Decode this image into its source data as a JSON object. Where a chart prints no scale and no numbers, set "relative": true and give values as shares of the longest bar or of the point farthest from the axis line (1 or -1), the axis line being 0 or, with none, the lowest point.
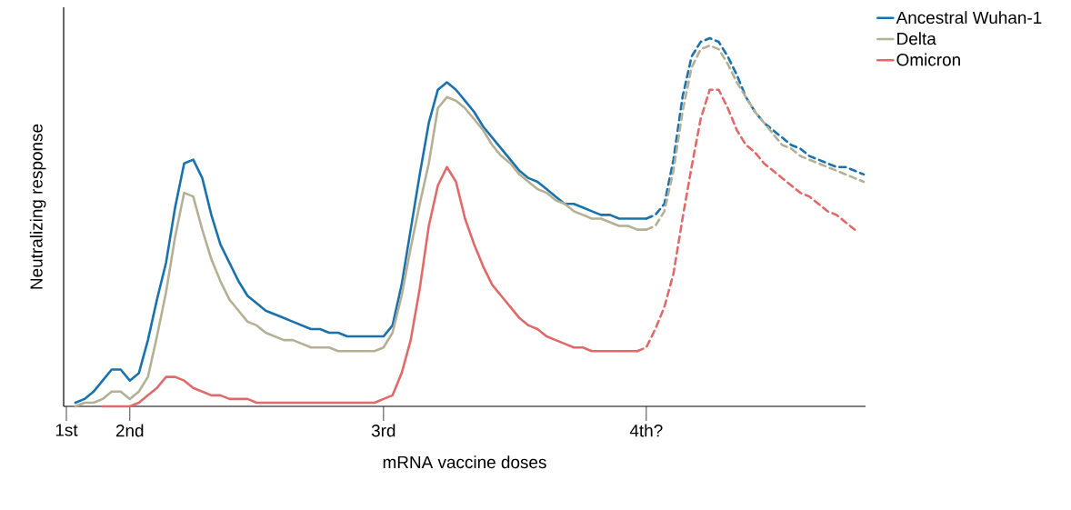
{
  "chart_data": {
    "type": "line",
    "relative": true,
    "xlabel": "mRNA vaccine doses",
    "ylabel": "Neutralizing response",
    "legend": "top right",
    "categories": [
      "1st",
      null,
      null,
      null,
      null,
      null,
      null,
      "2nd",
      null,
      null,
      null,
      null,
      null,
      null,
      null,
      null,
      null,
      null,
      null,
      null,
      null,
      null,
      null,
      null,
      null,
      null,
      null,
      null,
      null,
      null,
      null,
      null,
      null,
      null,
      null,
      "3rd",
      null,
      null,
      null,
      null,
      null,
      null,
      null,
      null,
      null,
      null,
      null,
      null,
      null,
      null,
      null,
      null,
      null,
      null,
      null,
      null,
      null,
      null,
      null,
      null,
      null,
      null,
      null,
      null,
      "4th?",
      null,
      null,
      null,
      null,
      null,
      null,
      null,
      null,
      null,
      null,
      null,
      null,
      null,
      null,
      null,
      null,
      null,
      null,
      null,
      null,
      null,
      null,
      null,
      null
    ],
    "series": [
      {
        "name": "Ancestral Wuhan-1",
        "color": "#1a72ad",
        "line_style": "solid",
        "values": [
          null,
          0.01,
          0.02,
          0.04,
          0.07,
          0.1,
          0.1,
          0.07,
          0.09,
          0.18,
          0.29,
          0.39,
          0.54,
          0.66,
          0.67,
          0.62,
          0.52,
          0.44,
          0.39,
          0.34,
          0.3,
          0.28,
          0.26,
          0.25,
          0.24,
          0.23,
          0.22,
          0.21,
          0.21,
          0.2,
          0.2,
          0.19,
          0.19,
          0.19,
          0.19,
          0.19,
          0.22,
          0.33,
          0.48,
          0.63,
          0.77,
          0.86,
          0.88,
          0.86,
          0.83,
          0.8,
          0.76,
          0.73,
          0.7,
          0.67,
          0.64,
          0.62,
          0.61,
          0.59,
          0.57,
          0.55,
          0.55,
          0.54,
          0.53,
          0.52,
          0.52,
          0.51,
          0.51,
          0.51,
          0.51,
          null,
          null,
          null,
          null,
          null,
          null,
          null,
          null,
          null,
          null,
          null,
          null,
          null,
          null,
          null,
          null,
          null,
          null,
          null,
          null,
          null,
          null,
          null,
          null
        ]
      },
      {
        "name": "Delta",
        "color": "#b5b095",
        "line_style": "solid",
        "values": [
          null,
          0,
          0.01,
          0.01,
          0.02,
          0.04,
          0.04,
          0.02,
          0.04,
          0.08,
          0.19,
          0.31,
          0.46,
          0.58,
          0.57,
          0.48,
          0.4,
          0.34,
          0.29,
          0.26,
          0.23,
          0.22,
          0.2,
          0.19,
          0.18,
          0.18,
          0.17,
          0.16,
          0.16,
          0.16,
          0.15,
          0.15,
          0.15,
          0.15,
          0.15,
          0.16,
          0.2,
          0.3,
          0.43,
          0.55,
          0.66,
          0.81,
          0.84,
          0.83,
          0.81,
          0.78,
          0.75,
          0.71,
          0.68,
          0.66,
          0.63,
          0.61,
          0.59,
          0.58,
          0.56,
          0.55,
          0.53,
          0.52,
          0.51,
          0.51,
          0.5,
          0.49,
          0.49,
          0.48,
          0.48,
          null,
          null,
          null,
          null,
          null,
          null,
          null,
          null,
          null,
          null,
          null,
          null,
          null,
          null,
          null,
          null,
          null,
          null,
          null,
          null,
          null,
          null,
          null,
          null
        ]
      },
      {
        "name": "Omicron",
        "color": "#e06a6a",
        "line_style": "solid",
        "values": [
          null,
          null,
          null,
          null,
          0,
          0,
          0,
          0,
          0.01,
          0.03,
          0.05,
          0.08,
          0.08,
          0.07,
          0.05,
          0.04,
          0.03,
          0.03,
          0.02,
          0.02,
          0.02,
          0.01,
          0.01,
          0.01,
          0.01,
          0.01,
          0.01,
          0.01,
          0.01,
          0.01,
          0.01,
          0.01,
          0.01,
          0.01,
          0.01,
          0.02,
          0.03,
          0.09,
          0.18,
          0.32,
          0.49,
          0.6,
          0.65,
          0.61,
          0.51,
          0.44,
          0.38,
          0.33,
          0.3,
          0.27,
          0.24,
          0.22,
          0.21,
          0.19,
          0.18,
          0.17,
          0.16,
          0.16,
          0.15,
          0.15,
          0.15,
          0.15,
          0.15,
          0.15,
          null,
          null,
          null,
          null,
          null,
          null,
          null,
          null,
          null,
          null,
          null,
          null,
          null,
          null,
          null,
          null,
          null,
          null,
          null,
          null,
          null,
          null,
          null,
          null,
          null
        ]
      },
      {
        "color": "#1a72ad",
        "line_style": "dashed",
        "values": [
          null,
          null,
          null,
          null,
          null,
          null,
          null,
          null,
          null,
          null,
          null,
          null,
          null,
          null,
          null,
          null,
          null,
          null,
          null,
          null,
          null,
          null,
          null,
          null,
          null,
          null,
          null,
          null,
          null,
          null,
          null,
          null,
          null,
          null,
          null,
          null,
          null,
          null,
          null,
          null,
          null,
          null,
          null,
          null,
          null,
          null,
          null,
          null,
          null,
          null,
          null,
          null,
          null,
          null,
          null,
          null,
          null,
          null,
          null,
          null,
          null,
          null,
          null,
          null,
          0.51,
          0.52,
          0.55,
          0.67,
          0.84,
          0.95,
          0.99,
          1,
          0.99,
          0.95,
          0.9,
          0.84,
          0.8,
          0.77,
          0.75,
          0.73,
          0.71,
          0.7,
          0.68,
          0.67,
          0.66,
          0.65,
          0.65,
          0.64,
          0.63
        ]
      },
      {
        "color": "#b5b095",
        "line_style": "dashed",
        "values": [
          null,
          null,
          null,
          null,
          null,
          null,
          null,
          null,
          null,
          null,
          null,
          null,
          null,
          null,
          null,
          null,
          null,
          null,
          null,
          null,
          null,
          null,
          null,
          null,
          null,
          null,
          null,
          null,
          null,
          null,
          null,
          null,
          null,
          null,
          null,
          null,
          null,
          null,
          null,
          null,
          null,
          null,
          null,
          null,
          null,
          null,
          null,
          null,
          null,
          null,
          null,
          null,
          null,
          null,
          null,
          null,
          null,
          null,
          null,
          null,
          null,
          null,
          null,
          null,
          0.48,
          0.49,
          0.53,
          0.64,
          0.8,
          0.92,
          0.97,
          0.98,
          0.97,
          0.93,
          0.88,
          0.84,
          0.8,
          0.77,
          0.74,
          0.71,
          0.7,
          0.68,
          0.67,
          0.66,
          0.65,
          0.64,
          0.63,
          0.62,
          0.61
        ]
      },
      {
        "color": "#e06a6a",
        "line_style": "dashed",
        "values": [
          null,
          null,
          null,
          null,
          null,
          null,
          null,
          null,
          null,
          null,
          null,
          null,
          null,
          null,
          null,
          null,
          null,
          null,
          null,
          null,
          null,
          null,
          null,
          null,
          null,
          null,
          null,
          null,
          null,
          null,
          null,
          null,
          null,
          null,
          null,
          null,
          null,
          null,
          null,
          null,
          null,
          null,
          null,
          null,
          null,
          null,
          null,
          null,
          null,
          null,
          null,
          null,
          null,
          null,
          null,
          null,
          null,
          null,
          null,
          null,
          null,
          null,
          null,
          0.15,
          0.16,
          0.21,
          0.27,
          0.36,
          0.51,
          0.65,
          0.78,
          0.86,
          0.86,
          0.81,
          0.75,
          0.71,
          0.69,
          0.66,
          0.64,
          0.62,
          0.6,
          0.58,
          0.57,
          0.55,
          0.53,
          0.52,
          0.5,
          0.48,
          null
        ]
      }
    ]
  }
}
